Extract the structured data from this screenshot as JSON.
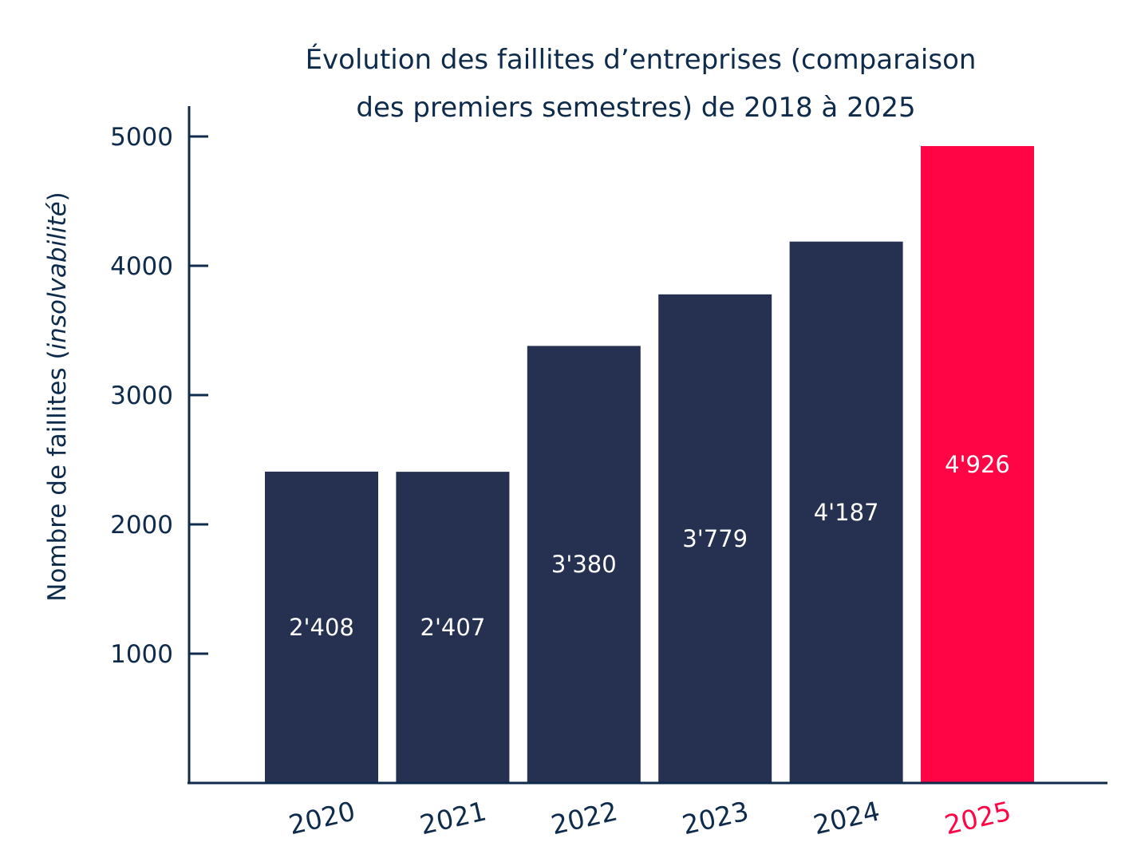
{
  "chart_data": {
    "type": "bar",
    "title_lines": [
      "Évolution des faillites d’entreprises (comparaison",
      "des premiers semestres) de 2018 à 2025"
    ],
    "xlabel": "",
    "ylabel_prefix": "Nombre de faillites (",
    "ylabel_italic": "insolvabilité",
    "ylabel_suffix": ")",
    "categories": [
      "2020",
      "2021",
      "2022",
      "2023",
      "2024",
      "2025"
    ],
    "values": [
      2408,
      2407,
      3380,
      3779,
      4187,
      4926
    ],
    "value_labels": [
      "2'408",
      "2'407",
      "3'380",
      "3'779",
      "4'187",
      "4'926"
    ],
    "yticks": [
      1000,
      2000,
      3000,
      4000,
      5000
    ],
    "ytick_labels": [
      "1000",
      "2000",
      "3000",
      "4000",
      "5000"
    ],
    "ylim": [
      0,
      5230
    ],
    "grid": false,
    "legend": "none",
    "colors": {
      "default_bar": "#263050",
      "highlight_bar": "#ff0546",
      "axis": "#0f2b4c",
      "text": "#0f2b4c"
    },
    "highlight_category": "2025"
  }
}
